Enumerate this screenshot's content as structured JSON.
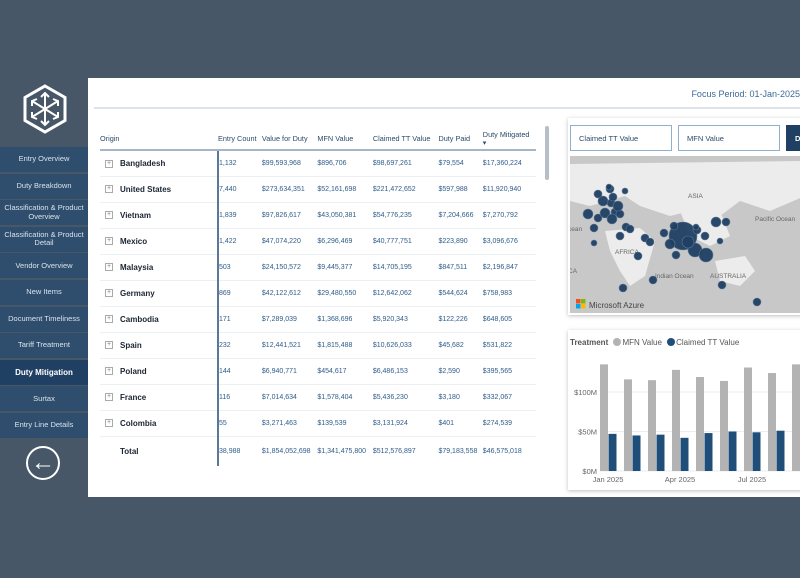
{
  "header": {
    "focus_period": "Focus Period: 01-Jan-2025"
  },
  "sidebar": {
    "items": [
      {
        "label": "Entry Overview"
      },
      {
        "label": "Duty Breakdown"
      },
      {
        "label": "Classification & Product Overview"
      },
      {
        "label": "Classification & Product Detail"
      },
      {
        "label": "Vendor Overview"
      },
      {
        "label": "New Items"
      },
      {
        "label": "Document Timeliness"
      },
      {
        "label": "Tariff Treatment"
      },
      {
        "label": "Duty Mitigation",
        "active": true
      },
      {
        "label": "Surtax"
      },
      {
        "label": "Entry Line Details"
      }
    ],
    "back_icon": "arrow-left-circle-icon"
  },
  "table": {
    "columns": [
      "Origin",
      "Entry Count",
      "Value for Duty",
      "MFN Value",
      "Claimed TT Value",
      "Duty Paid",
      "Duty Mitigated"
    ],
    "sort_column": "Duty Mitigated",
    "sort_direction": "descending",
    "rows": [
      [
        "Bangladesh",
        "1,132",
        "$99,593,968",
        "$896,706",
        "$98,697,261",
        "$79,554",
        "$17,360,224"
      ],
      [
        "United States",
        "7,440",
        "$273,634,351",
        "$52,161,698",
        "$221,472,652",
        "$597,988",
        "$11,920,940"
      ],
      [
        "Vietnam",
        "1,839",
        "$97,826,617",
        "$43,050,381",
        "$54,776,235",
        "$7,204,666",
        "$7,270,792"
      ],
      [
        "Mexico",
        "1,422",
        "$47,074,220",
        "$6,296,469",
        "$40,777,751",
        "$223,890",
        "$3,096,676"
      ],
      [
        "Malaysia",
        "503",
        "$24,150,572",
        "$9,445,377",
        "$14,705,195",
        "$847,511",
        "$2,196,847"
      ],
      [
        "Germany",
        "869",
        "$42,122,612",
        "$29,480,550",
        "$12,642,062",
        "$544,624",
        "$758,983"
      ],
      [
        "Cambodia",
        "171",
        "$7,289,039",
        "$1,368,696",
        "$5,920,343",
        "$122,226",
        "$648,605"
      ],
      [
        "Spain",
        "232",
        "$12,441,521",
        "$1,815,488",
        "$10,626,033",
        "$45,682",
        "$531,822"
      ],
      [
        "Poland",
        "144",
        "$6,940,771",
        "$454,617",
        "$6,486,153",
        "$2,590",
        "$395,565"
      ],
      [
        "France",
        "116",
        "$7,014,634",
        "$1,578,404",
        "$5,436,230",
        "$3,180",
        "$332,067"
      ],
      [
        "Colombia",
        "55",
        "$3,271,463",
        "$139,539",
        "$3,131,924",
        "$401",
        "$274,539"
      ]
    ],
    "total": [
      "Total",
      "38,988",
      "$1,854,052,698",
      "$1,341,475,800",
      "$512,576,897",
      "$79,183,558",
      "$46,575,018"
    ]
  },
  "map": {
    "buttons": [
      "Claimed TT Value",
      "MFN Value",
      "D"
    ],
    "labels": [
      "ASIA",
      "Pacific Ocean",
      "AFRICA",
      "Indian Ocean",
      "AUSTRALIA",
      "cean",
      "CA"
    ],
    "attribution": "Microsoft Azure",
    "bubble_color": "#1f3f63"
  },
  "chart_data": {
    "type": "bar",
    "legend_title": "Treatment",
    "legend_position": "top-left",
    "categories": [
      "Jan 2025",
      "Feb 2025",
      "Mar 2025",
      "Apr 2025",
      "May 2025",
      "Jun 2025",
      "Jul 2025",
      "Aug 2025",
      "Sep 2025"
    ],
    "tick_labels": [
      "Jan 2025",
      "Apr 2025",
      "Jul 2025"
    ],
    "y_ticks": [
      "$0M",
      "$50M",
      "$100M"
    ],
    "ylim": [
      0,
      140
    ],
    "grid": true,
    "series": [
      {
        "name": "MFN Value",
        "color": "#b3b3b3",
        "values": [
          135,
          116,
          115,
          128,
          119,
          114,
          131,
          124,
          135
        ]
      },
      {
        "name": "Claimed TT Value",
        "color": "#1f4e79",
        "values": [
          47,
          45,
          46,
          42,
          48,
          50,
          49,
          51,
          50
        ]
      }
    ]
  }
}
